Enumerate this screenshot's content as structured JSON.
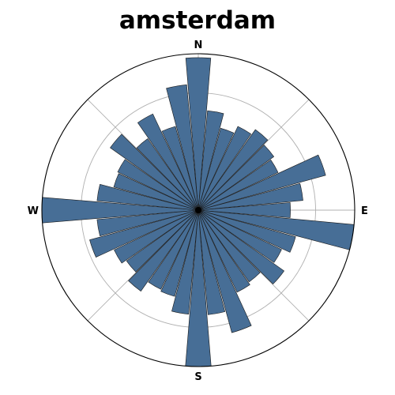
{
  "chart_data": {
    "type": "bar",
    "projection": "polar",
    "title": "amsterdam",
    "direction_labels": [
      "N",
      "E",
      "S",
      "W"
    ],
    "theta_direction": "clockwise",
    "theta_zero": "N",
    "sector_count": 36,
    "rmax": 1.0,
    "grid_circles": [
      0.25,
      0.5,
      0.75
    ],
    "grid_angles_deg": [
      45,
      135,
      225,
      315
    ],
    "bar_color": "#476E96",
    "edge_color": "#1a1a1a",
    "values": [
      0.975,
      0.638,
      0.543,
      0.592,
      0.631,
      0.592,
      0.564,
      0.844,
      0.672,
      0.589,
      1.0,
      0.645,
      0.589,
      0.672,
      0.562,
      0.58,
      0.812,
      0.671,
      1.0,
      0.668,
      0.572,
      0.56,
      0.635,
      0.562,
      0.595,
      0.72,
      0.65,
      1.0,
      0.65,
      0.56,
      0.57,
      0.69,
      0.56,
      0.68,
      0.555,
      0.805
    ]
  }
}
